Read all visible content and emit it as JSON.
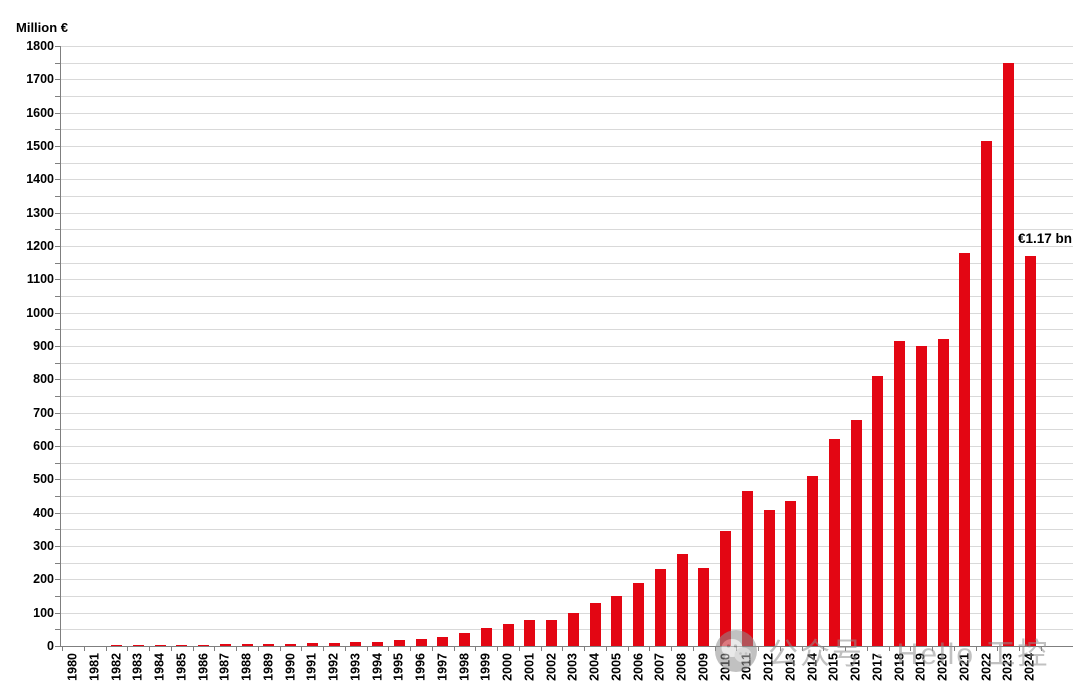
{
  "chart_data": {
    "type": "bar",
    "title": "",
    "unit_label": "Million €",
    "xlabel": "",
    "ylabel": "Million €",
    "categories": [
      "1980",
      "1981",
      "1982",
      "1983",
      "1984",
      "1985",
      "1986",
      "1987",
      "1988",
      "1989",
      "1990",
      "1991",
      "1992",
      "1993",
      "1994",
      "1995",
      "1996",
      "1997",
      "1998",
      "1999",
      "2000",
      "2001",
      "2002",
      "2003",
      "2004",
      "2005",
      "2006",
      "2007",
      "2008",
      "2009",
      "2010",
      "2011",
      "2012",
      "2013",
      "2014",
      "2015",
      "2016",
      "2017",
      "2018",
      "2019",
      "2020",
      "2021",
      "2022",
      "2023",
      "2024"
    ],
    "values": [
      1,
      1,
      2,
      2,
      3,
      3,
      4,
      5,
      5,
      6,
      7,
      8,
      9,
      11,
      13,
      17,
      22,
      27,
      38,
      55,
      67,
      78,
      78,
      100,
      130,
      151,
      188,
      230,
      275,
      234,
      345,
      465,
      408,
      435,
      510,
      620,
      679,
      810,
      915,
      900,
      920,
      1180,
      1515,
      1750,
      1170
    ],
    "ylim": [
      0,
      1800
    ],
    "y_label_step": 100,
    "gridline_step": 50,
    "grid": true,
    "legend_position": "none",
    "bar_color": "#e30613",
    "annotation": {
      "text": "€1.17 bn",
      "target_year": "2024",
      "target_value": 1170
    }
  },
  "watermark": {
    "text": "公众号 · Hello 工控",
    "icon": "wechat-official-account-icon"
  },
  "colors": {
    "bar": "#e30613",
    "gridline": "#d9d9d9",
    "axis": "#7f7f7f",
    "text": "#000000",
    "watermark": "#8f8f8f"
  }
}
